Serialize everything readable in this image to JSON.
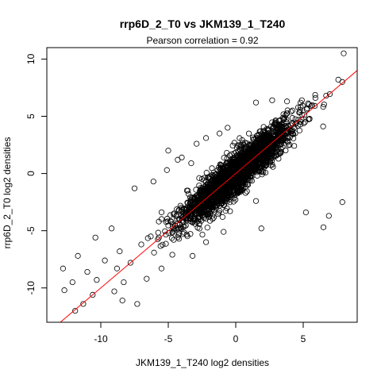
{
  "chart_data": {
    "type": "scatter",
    "title": "rrp6D_2_T0 vs JKM139_1_T240",
    "subtitle": "Pearson correlation =  0.92",
    "xlabel": "JKM139_1_T240 log2 densities",
    "ylabel": "rrp6D_2_T0 log2 densities",
    "xlim": [
      -14,
      9
    ],
    "ylim": [
      -13,
      11
    ],
    "xticks": [
      -10,
      -5,
      0,
      5
    ],
    "yticks": [
      -10,
      -5,
      0,
      5,
      10
    ],
    "xtick_labels": [
      "-10",
      "-5",
      "0",
      "5"
    ],
    "ytick_labels": [
      "-10",
      "-5",
      "0",
      "5",
      "10"
    ],
    "grid": false,
    "legend": "none",
    "point_color": "#000000",
    "fit_line_color": "#ff0000",
    "fit_line": {
      "slope": 1.0,
      "intercept": 0.0
    },
    "pearson_r": 0.92,
    "outlier_points": [
      [
        8.0,
        10.5
      ],
      [
        7.6,
        8.2
      ],
      [
        7.9,
        8.0
      ],
      [
        6.7,
        6.8
      ],
      [
        5.9,
        6.6
      ],
      [
        4.9,
        6.4
      ],
      [
        3.8,
        6.3
      ],
      [
        2.7,
        6.4
      ],
      [
        1.5,
        6.2
      ],
      [
        7.9,
        -2.5
      ],
      [
        6.9,
        -3.7
      ],
      [
        6.5,
        -4.7
      ],
      [
        5.2,
        -3.4
      ],
      [
        1.9,
        -4.8
      ],
      [
        1.5,
        -2.4
      ],
      [
        -5.1,
        0.3
      ],
      [
        -5.0,
        2.0
      ],
      [
        -2.2,
        3.1
      ],
      [
        -1.2,
        3.5
      ],
      [
        -0.6,
        4.0
      ],
      [
        -2.9,
        2.6
      ],
      [
        -4.3,
        1.2
      ],
      [
        -6.1,
        -0.7
      ],
      [
        -7.5,
        -1.3
      ],
      [
        -9.2,
        -4.8
      ],
      [
        -10.4,
        -5.6
      ],
      [
        -11.7,
        -7.2
      ],
      [
        -12.1,
        -9.5
      ],
      [
        -11.3,
        -11.4
      ],
      [
        -12.8,
        -8.3
      ],
      [
        -12.7,
        -10.2
      ],
      [
        -11.9,
        -12.0
      ],
      [
        -10.3,
        -9.3
      ],
      [
        -8.4,
        -11.1
      ],
      [
        -7.3,
        -11.4
      ],
      [
        -8.3,
        -9.5
      ],
      [
        -6.6,
        -9.2
      ],
      [
        -5.5,
        -8.3
      ],
      [
        -4.7,
        -7.1
      ],
      [
        -3.2,
        -7.2
      ],
      [
        -8.8,
        -8.3
      ],
      [
        -9.7,
        -7.6
      ],
      [
        -7.0,
        -6.2
      ],
      [
        -6.3,
        -5.5
      ],
      [
        -5.7,
        -4.2
      ],
      [
        -4.6,
        -5.8
      ],
      [
        -3.0,
        -4.4
      ],
      [
        -2.2,
        -6.0
      ],
      [
        -0.9,
        -5.1
      ],
      [
        -3.3,
        0.9
      ],
      [
        -4.0,
        1.4
      ],
      [
        2.3,
        3.9
      ],
      [
        3.2,
        4.6
      ],
      [
        4.1,
        5.4
      ],
      [
        5.6,
        5.9
      ],
      [
        -9.0,
        -10.3
      ],
      [
        -10.6,
        -10.6
      ],
      [
        -11.0,
        -8.6
      ],
      [
        -7.8,
        -7.8
      ],
      [
        -8.6,
        -6.8
      ]
    ]
  }
}
